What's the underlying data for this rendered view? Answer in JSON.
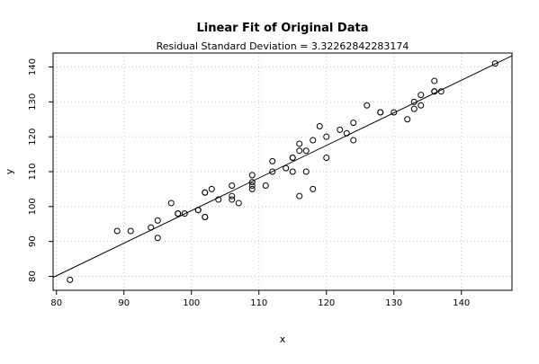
{
  "chart_data": {
    "type": "scatter",
    "title": "Linear Fit of Original Data",
    "subtitle": "Residual Standard Deviation =  3.32262842283174",
    "xlabel": "x",
    "ylabel": "y",
    "xlim": [
      79.5,
      147.5
    ],
    "ylim": [
      76,
      144
    ],
    "xticks": [
      80,
      90,
      100,
      110,
      120,
      130,
      140
    ],
    "yticks": [
      80,
      90,
      100,
      110,
      120,
      130,
      140
    ],
    "grid": true,
    "fit_line": {
      "x1": 79.5,
      "y1": 79.7,
      "x2": 147.5,
      "y2": 143.2
    },
    "points": [
      [
        82,
        79
      ],
      [
        89,
        93
      ],
      [
        91,
        93
      ],
      [
        94,
        94
      ],
      [
        95,
        96
      ],
      [
        95,
        91
      ],
      [
        97,
        101
      ],
      [
        98,
        98
      ],
      [
        98,
        98
      ],
      [
        99,
        98
      ],
      [
        101,
        99
      ],
      [
        101,
        99
      ],
      [
        102,
        104
      ],
      [
        102,
        104
      ],
      [
        102,
        97
      ],
      [
        102,
        97
      ],
      [
        103,
        105
      ],
      [
        104,
        102
      ],
      [
        106,
        106
      ],
      [
        106,
        103
      ],
      [
        106,
        102
      ],
      [
        107,
        101
      ],
      [
        109,
        109
      ],
      [
        109,
        107
      ],
      [
        109,
        106
      ],
      [
        109,
        105
      ],
      [
        111,
        106
      ],
      [
        112,
        113
      ],
      [
        112,
        110
      ],
      [
        114,
        111
      ],
      [
        115,
        114
      ],
      [
        115,
        114
      ],
      [
        115,
        110
      ],
      [
        116,
        116
      ],
      [
        116,
        118
      ],
      [
        116,
        103
      ],
      [
        117,
        116
      ],
      [
        117,
        110
      ],
      [
        118,
        119
      ],
      [
        118,
        105
      ],
      [
        119,
        123
      ],
      [
        120,
        120
      ],
      [
        120,
        114
      ],
      [
        122,
        122
      ],
      [
        123,
        121
      ],
      [
        124,
        124
      ],
      [
        124,
        119
      ],
      [
        126,
        129
      ],
      [
        128,
        127
      ],
      [
        128,
        127
      ],
      [
        130,
        127
      ],
      [
        132,
        125
      ],
      [
        133,
        130
      ],
      [
        133,
        128
      ],
      [
        134,
        132
      ],
      [
        134,
        129
      ],
      [
        136,
        136
      ],
      [
        136,
        133
      ],
      [
        136,
        133
      ],
      [
        137,
        133
      ],
      [
        145,
        141
      ]
    ]
  }
}
